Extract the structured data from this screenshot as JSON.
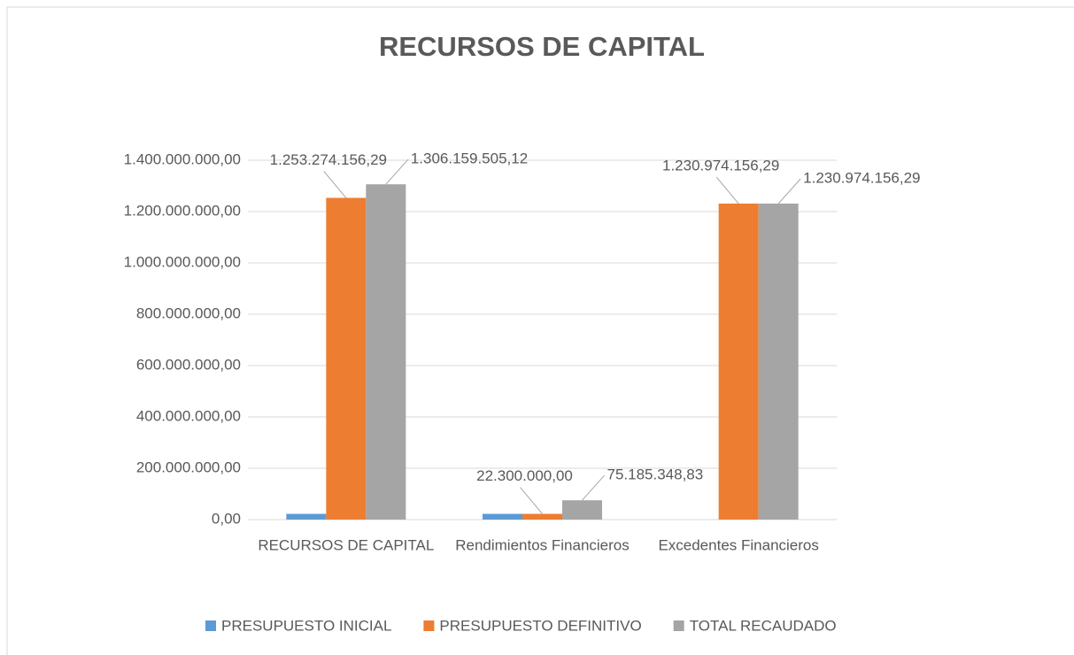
{
  "chart_data": {
    "type": "bar",
    "title": "RECURSOS DE CAPITAL",
    "categories": [
      "RECURSOS DE CAPITAL",
      "Rendimientos Financieros",
      "Excedentes Financieros"
    ],
    "series": [
      {
        "name": "PRESUPUESTO INICIAL",
        "color": "#5b9bd5",
        "values": [
          22300000,
          22300000,
          0
        ]
      },
      {
        "name": "PRESUPUESTO DEFINITIVO",
        "color": "#ed7d31",
        "values": [
          1253274156.29,
          22300000,
          1230974156.29
        ],
        "value_labels": [
          "1.253.274.156,29",
          "22.300.000,00",
          "1.230.974.156,29"
        ]
      },
      {
        "name": "TOTAL RECAUDADO",
        "color": "#a5a5a5",
        "values": [
          1306159505.12,
          75185348.83,
          1230974156.29
        ],
        "value_labels": [
          "1.306.159.505,12",
          "75.185.348,83",
          "1.230.974.156,29"
        ]
      }
    ],
    "ylim": [
      0,
      1400000000
    ],
    "yticks": [
      {
        "value": 0,
        "label": "0,00"
      },
      {
        "value": 200000000,
        "label": "200.000.000,00"
      },
      {
        "value": 400000000,
        "label": "400.000.000,00"
      },
      {
        "value": 600000000,
        "label": "600.000.000,00"
      },
      {
        "value": 800000000,
        "label": "800.000.000,00"
      },
      {
        "value": 1000000000,
        "label": "1.000.000.000,00"
      },
      {
        "value": 1200000000,
        "label": "1.200.000.000,00"
      },
      {
        "value": 1400000000,
        "label": "1.400.000.000,00"
      }
    ],
    "grid": true,
    "legend": "bottom"
  }
}
